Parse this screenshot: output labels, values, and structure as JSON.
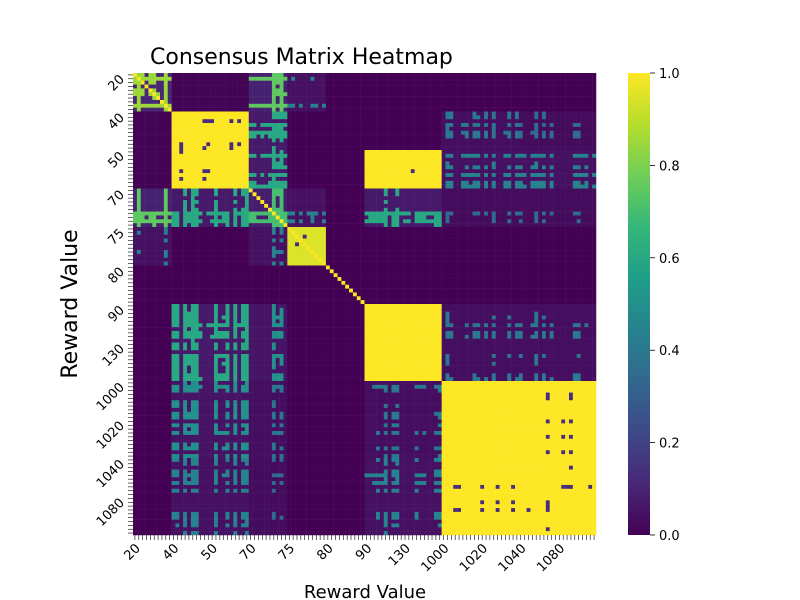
{
  "chart_data": {
    "type": "heatmap",
    "title": "Consensus Matrix Heatmap",
    "xlabel": "Reward Value",
    "ylabel": "Reward Value",
    "groups": [
      {
        "label": "20",
        "n": 10
      },
      {
        "label": "40",
        "n": 10
      },
      {
        "label": "50",
        "n": 10
      },
      {
        "label": "70",
        "n": 10
      },
      {
        "label": "75",
        "n": 10
      },
      {
        "label": "80",
        "n": 10
      },
      {
        "label": "90",
        "n": 10
      },
      {
        "label": "130",
        "n": 10
      },
      {
        "label": "1000",
        "n": 10
      },
      {
        "label": "1020",
        "n": 10
      },
      {
        "label": "1040",
        "n": 10
      },
      {
        "label": "1080",
        "n": 10
      }
    ],
    "blocks": {
      "row_groups": [
        "20",
        "40",
        "50",
        "70",
        "75",
        "80",
        "90",
        "130",
        "1000",
        "1020",
        "1040",
        "1080"
      ],
      "values": [
        [
          0.7,
          0.05,
          0.05,
          0.6,
          0.3,
          0.0,
          0.0,
          0.0,
          0.0,
          0.0,
          0.0,
          0.0
        ],
        [
          0.05,
          0.85,
          0.85,
          0.45,
          0.0,
          0.0,
          0.0,
          0.0,
          0.25,
          0.25,
          0.2,
          0.2
        ],
        [
          0.05,
          0.85,
          0.85,
          0.45,
          0.0,
          0.0,
          0.9,
          0.9,
          0.3,
          0.3,
          0.3,
          0.3
        ],
        [
          0.6,
          0.45,
          0.45,
          0.55,
          0.3,
          0.0,
          0.45,
          0.45,
          0.2,
          0.2,
          0.2,
          0.2
        ],
        [
          0.3,
          0.0,
          0.0,
          0.3,
          0.8,
          0.0,
          0.0,
          0.0,
          0.0,
          0.0,
          0.0,
          0.0
        ],
        [
          0.0,
          0.0,
          0.0,
          0.0,
          0.0,
          0.0,
          0.0,
          0.0,
          0.0,
          0.0,
          0.0,
          0.0
        ],
        [
          0.0,
          0.45,
          0.45,
          0.35,
          0.0,
          0.0,
          0.95,
          0.95,
          0.25,
          0.25,
          0.25,
          0.25
        ],
        [
          0.0,
          0.45,
          0.45,
          0.35,
          0.0,
          0.0,
          0.95,
          0.95,
          0.25,
          0.25,
          0.25,
          0.25
        ],
        [
          0.0,
          0.35,
          0.35,
          0.25,
          0.0,
          0.0,
          0.25,
          0.25,
          0.9,
          0.9,
          0.85,
          0.85
        ],
        [
          0.0,
          0.35,
          0.35,
          0.25,
          0.0,
          0.0,
          0.25,
          0.25,
          0.9,
          0.95,
          0.9,
          0.85
        ],
        [
          0.0,
          0.3,
          0.3,
          0.2,
          0.0,
          0.0,
          0.3,
          0.3,
          0.85,
          0.9,
          0.95,
          0.85
        ],
        [
          0.0,
          0.3,
          0.3,
          0.2,
          0.0,
          0.0,
          0.3,
          0.3,
          0.85,
          0.85,
          0.85,
          0.95
        ]
      ]
    },
    "colormap": "viridis",
    "colorbar": {
      "min": 0.0,
      "max": 1.0,
      "ticks": [
        "0.0",
        "0.2",
        "0.4",
        "0.6",
        "0.8",
        "1.0"
      ]
    },
    "colors": {
      "viridis": [
        "#440154",
        "#482878",
        "#3e4989",
        "#31688e",
        "#26828e",
        "#1f9e89",
        "#35b779",
        "#6ece58",
        "#b5de2b",
        "#fde725"
      ]
    }
  }
}
